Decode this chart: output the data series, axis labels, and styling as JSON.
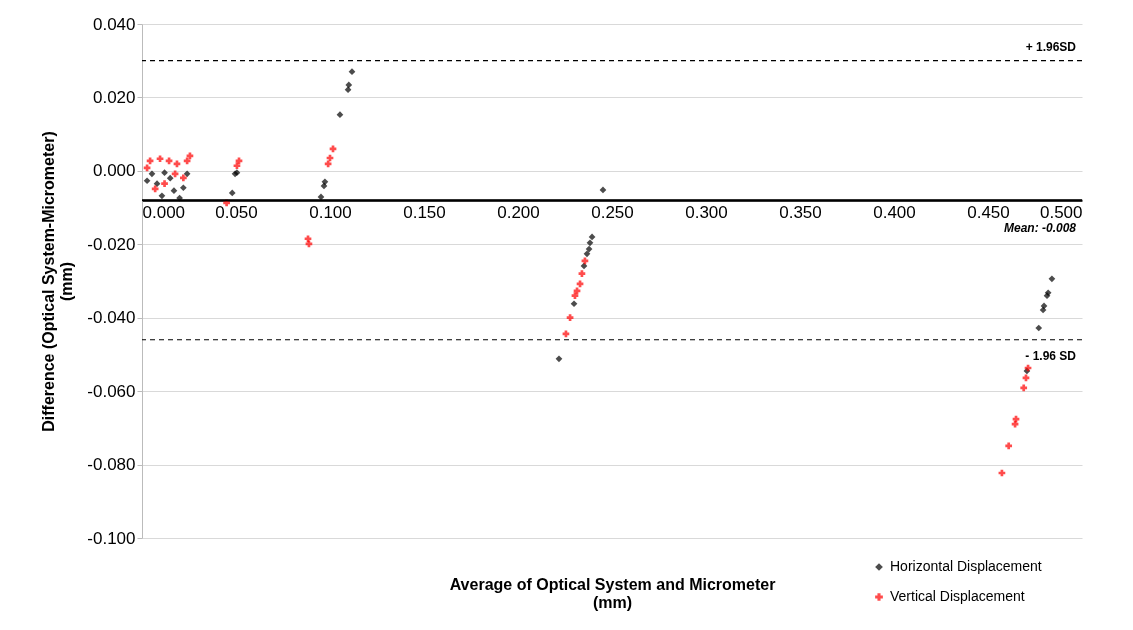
{
  "chart_data": {
    "type": "scatter",
    "xlabel": "Average of Optical System and Micrometer\n(mm)",
    "ylabel": "Difference (Optical System-Micrometer)\n(mm)",
    "xlim": [
      0,
      0.5
    ],
    "ylim": [
      -0.1,
      0.04
    ],
    "xticks": [
      {
        "value": 0,
        "label": "0.000"
      },
      {
        "value": 0.05,
        "label": "0.050"
      },
      {
        "value": 0.1,
        "label": "0.100"
      },
      {
        "value": 0.15,
        "label": "0.150"
      },
      {
        "value": 0.2,
        "label": "0.200"
      },
      {
        "value": 0.25,
        "label": "0.250"
      },
      {
        "value": 0.3,
        "label": "0.300"
      },
      {
        "value": 0.35,
        "label": "0.350"
      },
      {
        "value": 0.4,
        "label": "0.400"
      },
      {
        "value": 0.45,
        "label": "0.450"
      },
      {
        "value": 0.5,
        "label": "0.500"
      }
    ],
    "yticks": [
      {
        "value": -0.1,
        "label": "-0.100"
      },
      {
        "value": -0.08,
        "label": "-0.080"
      },
      {
        "value": -0.06,
        "label": "-0.060"
      },
      {
        "value": -0.04,
        "label": "-0.040"
      },
      {
        "value": -0.02,
        "label": "-0.020"
      },
      {
        "value": 0,
        "label": "0.000"
      },
      {
        "value": 0.02,
        "label": "0.020"
      },
      {
        "value": 0.04,
        "label": "0.040"
      }
    ],
    "grid": "y",
    "legend": "bottom right",
    "ref_lines": [
      {
        "axis": "y",
        "value": 0.03,
        "label": "+ 1.96SD",
        "line_style": "dashed",
        "color": "#000000"
      },
      {
        "axis": "y",
        "value": -0.008,
        "label": "Mean: -0.008",
        "line_style": "solid",
        "color": "#000000"
      },
      {
        "axis": "y",
        "value": -0.046,
        "label": "- 1.96 SD",
        "line_style": "dashed",
        "color": "#000000"
      }
    ],
    "series": [
      {
        "name": "Horizontal Displacement",
        "color": "#000000",
        "marker": "diamond",
        "x": [
          0.0027,
          0.008,
          0.0106,
          0.015,
          0.017,
          0.02,
          0.024,
          0.022,
          0.0053,
          0.012,
          0.048,
          0.0495,
          0.0505,
          0.0952,
          0.0968,
          0.0973,
          0.1053,
          0.1096,
          0.11,
          0.1117,
          0.2452,
          0.2394,
          0.2383,
          0.2378,
          0.2367,
          0.2351,
          0.2298,
          0.2218,
          0.484,
          0.482,
          0.4814,
          0.4798,
          0.4793,
          0.477,
          0.4707
        ],
        "values": [
          -0.0027,
          -0.0035,
          -0.0068,
          -0.002,
          -0.0054,
          -0.0074,
          -0.0008,
          -0.0046,
          -0.0008,
          -0.0005,
          -0.006,
          -0.0008,
          -0.0005,
          -0.0071,
          -0.0041,
          -0.003,
          0.0153,
          0.0221,
          0.0234,
          0.027,
          -0.0052,
          -0.018,
          -0.0196,
          -0.0213,
          -0.0226,
          -0.0259,
          -0.0362,
          -0.0512,
          -0.0294,
          -0.0332,
          -0.034,
          -0.0368,
          -0.0379,
          -0.0428,
          -0.0545
        ]
      },
      {
        "name": "Vertical Displacement",
        "color": "#ff0000",
        "marker": "cross",
        "x": [
          0.0043,
          0.0096,
          0.0144,
          0.0186,
          0.0255,
          0.007,
          0.012,
          0.0176,
          0.022,
          0.024,
          0.0027,
          0.0516,
          0.0505,
          0.045,
          0.099,
          0.1,
          0.1016,
          0.0883,
          0.0888,
          0.2356,
          0.234,
          0.233,
          0.2314,
          0.2303,
          0.2277,
          0.2255,
          0.4713,
          0.4702,
          0.469,
          0.4649,
          0.4644,
          0.461,
          0.4574
        ],
        "values": [
          0.0027,
          0.0033,
          0.0027,
          0.0019,
          0.0041,
          -0.0049,
          -0.0035,
          -0.0008,
          -0.0019,
          0.0027,
          0.0008,
          0.0027,
          0.0014,
          -0.0087,
          0.0019,
          0.0035,
          0.006,
          -0.0185,
          -0.0199,
          -0.0245,
          -0.028,
          -0.0308,
          -0.0327,
          -0.034,
          -0.04,
          -0.0444,
          -0.0537,
          -0.0564,
          -0.0591,
          -0.0676,
          -0.069,
          -0.0749,
          -0.0823
        ]
      }
    ]
  }
}
